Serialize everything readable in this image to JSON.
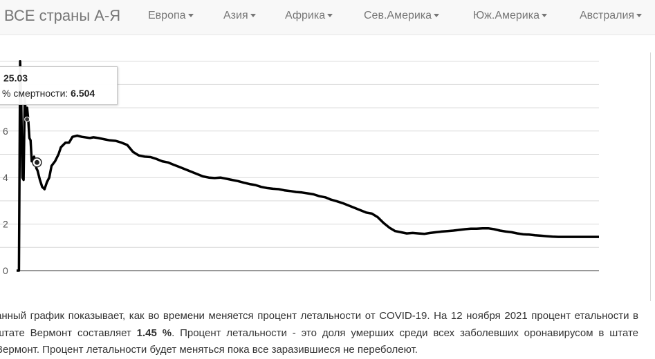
{
  "navbar": {
    "brand": "ВСЕ страны А-Я",
    "items": [
      {
        "label": "Европа"
      },
      {
        "label": "Азия"
      },
      {
        "label": "Африка"
      },
      {
        "label": "Сев.Америка"
      },
      {
        "label": "Юж.Америка"
      },
      {
        "label": "Австралия"
      }
    ]
  },
  "chart_data": {
    "type": "line",
    "y_ticks": [
      "0",
      "2",
      "4",
      "6"
    ],
    "ylim": [
      0,
      9
    ],
    "grid": true,
    "line_color": "#000000",
    "series": [
      {
        "x": [
          0,
          2,
          3,
          4,
          5,
          6,
          7,
          8,
          9,
          10,
          11,
          12,
          13,
          15,
          17,
          18,
          20,
          22,
          24,
          26,
          28,
          30,
          33,
          36,
          38,
          42,
          45,
          48,
          52,
          56,
          60,
          63,
          66,
          70,
          75,
          80,
          85,
          90,
          95,
          100,
          105,
          110,
          115,
          120,
          125,
          130,
          135,
          140,
          145,
          150,
          155,
          160,
          165,
          170,
          175,
          180,
          185,
          190,
          195,
          200,
          205,
          210,
          215,
          220,
          225,
          230,
          235,
          240,
          245,
          250,
          255,
          260,
          265,
          270,
          275,
          280,
          285,
          290,
          295,
          300,
          305,
          310,
          315,
          320,
          325,
          330,
          335,
          340,
          345,
          350,
          355,
          360,
          365,
          370,
          375,
          380,
          385,
          390,
          395,
          400,
          405,
          410,
          415,
          420,
          425,
          430,
          435,
          440,
          445,
          450,
          455,
          460,
          465,
          470,
          475,
          480,
          485,
          490,
          495,
          500
        ],
        "y": [
          0,
          0,
          9,
          7.2,
          4,
          3.9,
          7.5,
          6.5,
          7.0,
          6.504,
          5.7,
          5.6,
          4.7,
          4.9,
          4.4,
          4.3,
          3.9,
          3.6,
          3.5,
          3.8,
          4.0,
          4.5,
          4.7,
          5.0,
          5.3,
          5.5,
          5.5,
          5.75,
          5.8,
          5.75,
          5.72,
          5.7,
          5.73,
          5.7,
          5.65,
          5.6,
          5.58,
          5.5,
          5.4,
          5.1,
          4.95,
          4.9,
          4.88,
          4.8,
          4.7,
          4.65,
          4.55,
          4.45,
          4.35,
          4.25,
          4.15,
          4.05,
          4.0,
          3.98,
          4.0,
          3.95,
          3.9,
          3.85,
          3.78,
          3.72,
          3.68,
          3.6,
          3.55,
          3.52,
          3.5,
          3.45,
          3.42,
          3.38,
          3.36,
          3.32,
          3.28,
          3.2,
          3.15,
          3.05,
          2.98,
          2.9,
          2.8,
          2.7,
          2.6,
          2.5,
          2.45,
          2.3,
          2.05,
          1.85,
          1.7,
          1.65,
          1.6,
          1.62,
          1.6,
          1.58,
          1.62,
          1.65,
          1.68,
          1.7,
          1.72,
          1.75,
          1.78,
          1.8,
          1.8,
          1.82,
          1.82,
          1.78,
          1.72,
          1.68,
          1.65,
          1.6,
          1.56,
          1.55,
          1.52,
          1.5,
          1.48,
          1.46,
          1.45,
          1.45,
          1.45,
          1.45,
          1.45,
          1.45,
          1.45,
          1.45
        ]
      }
    ],
    "highlighted_point": {
      "x": 9,
      "y": 6.504
    },
    "tooltip": {
      "date": "25.03",
      "label": "% смертности:",
      "value": "6.504"
    }
  },
  "description": {
    "part1": "анный график показывает, как во времени меняется процент летальности от COVID-19. На 12 ноября 2021 процент етальности в штате Вермонт составляет ",
    "value": "1.45 %",
    "part2": ". Процент летальности - это доля умерших среди всех заболевших оронавирусом в штате Вермонт. Процент летальности будет меняться пока все заразившиеся не переболеют."
  }
}
